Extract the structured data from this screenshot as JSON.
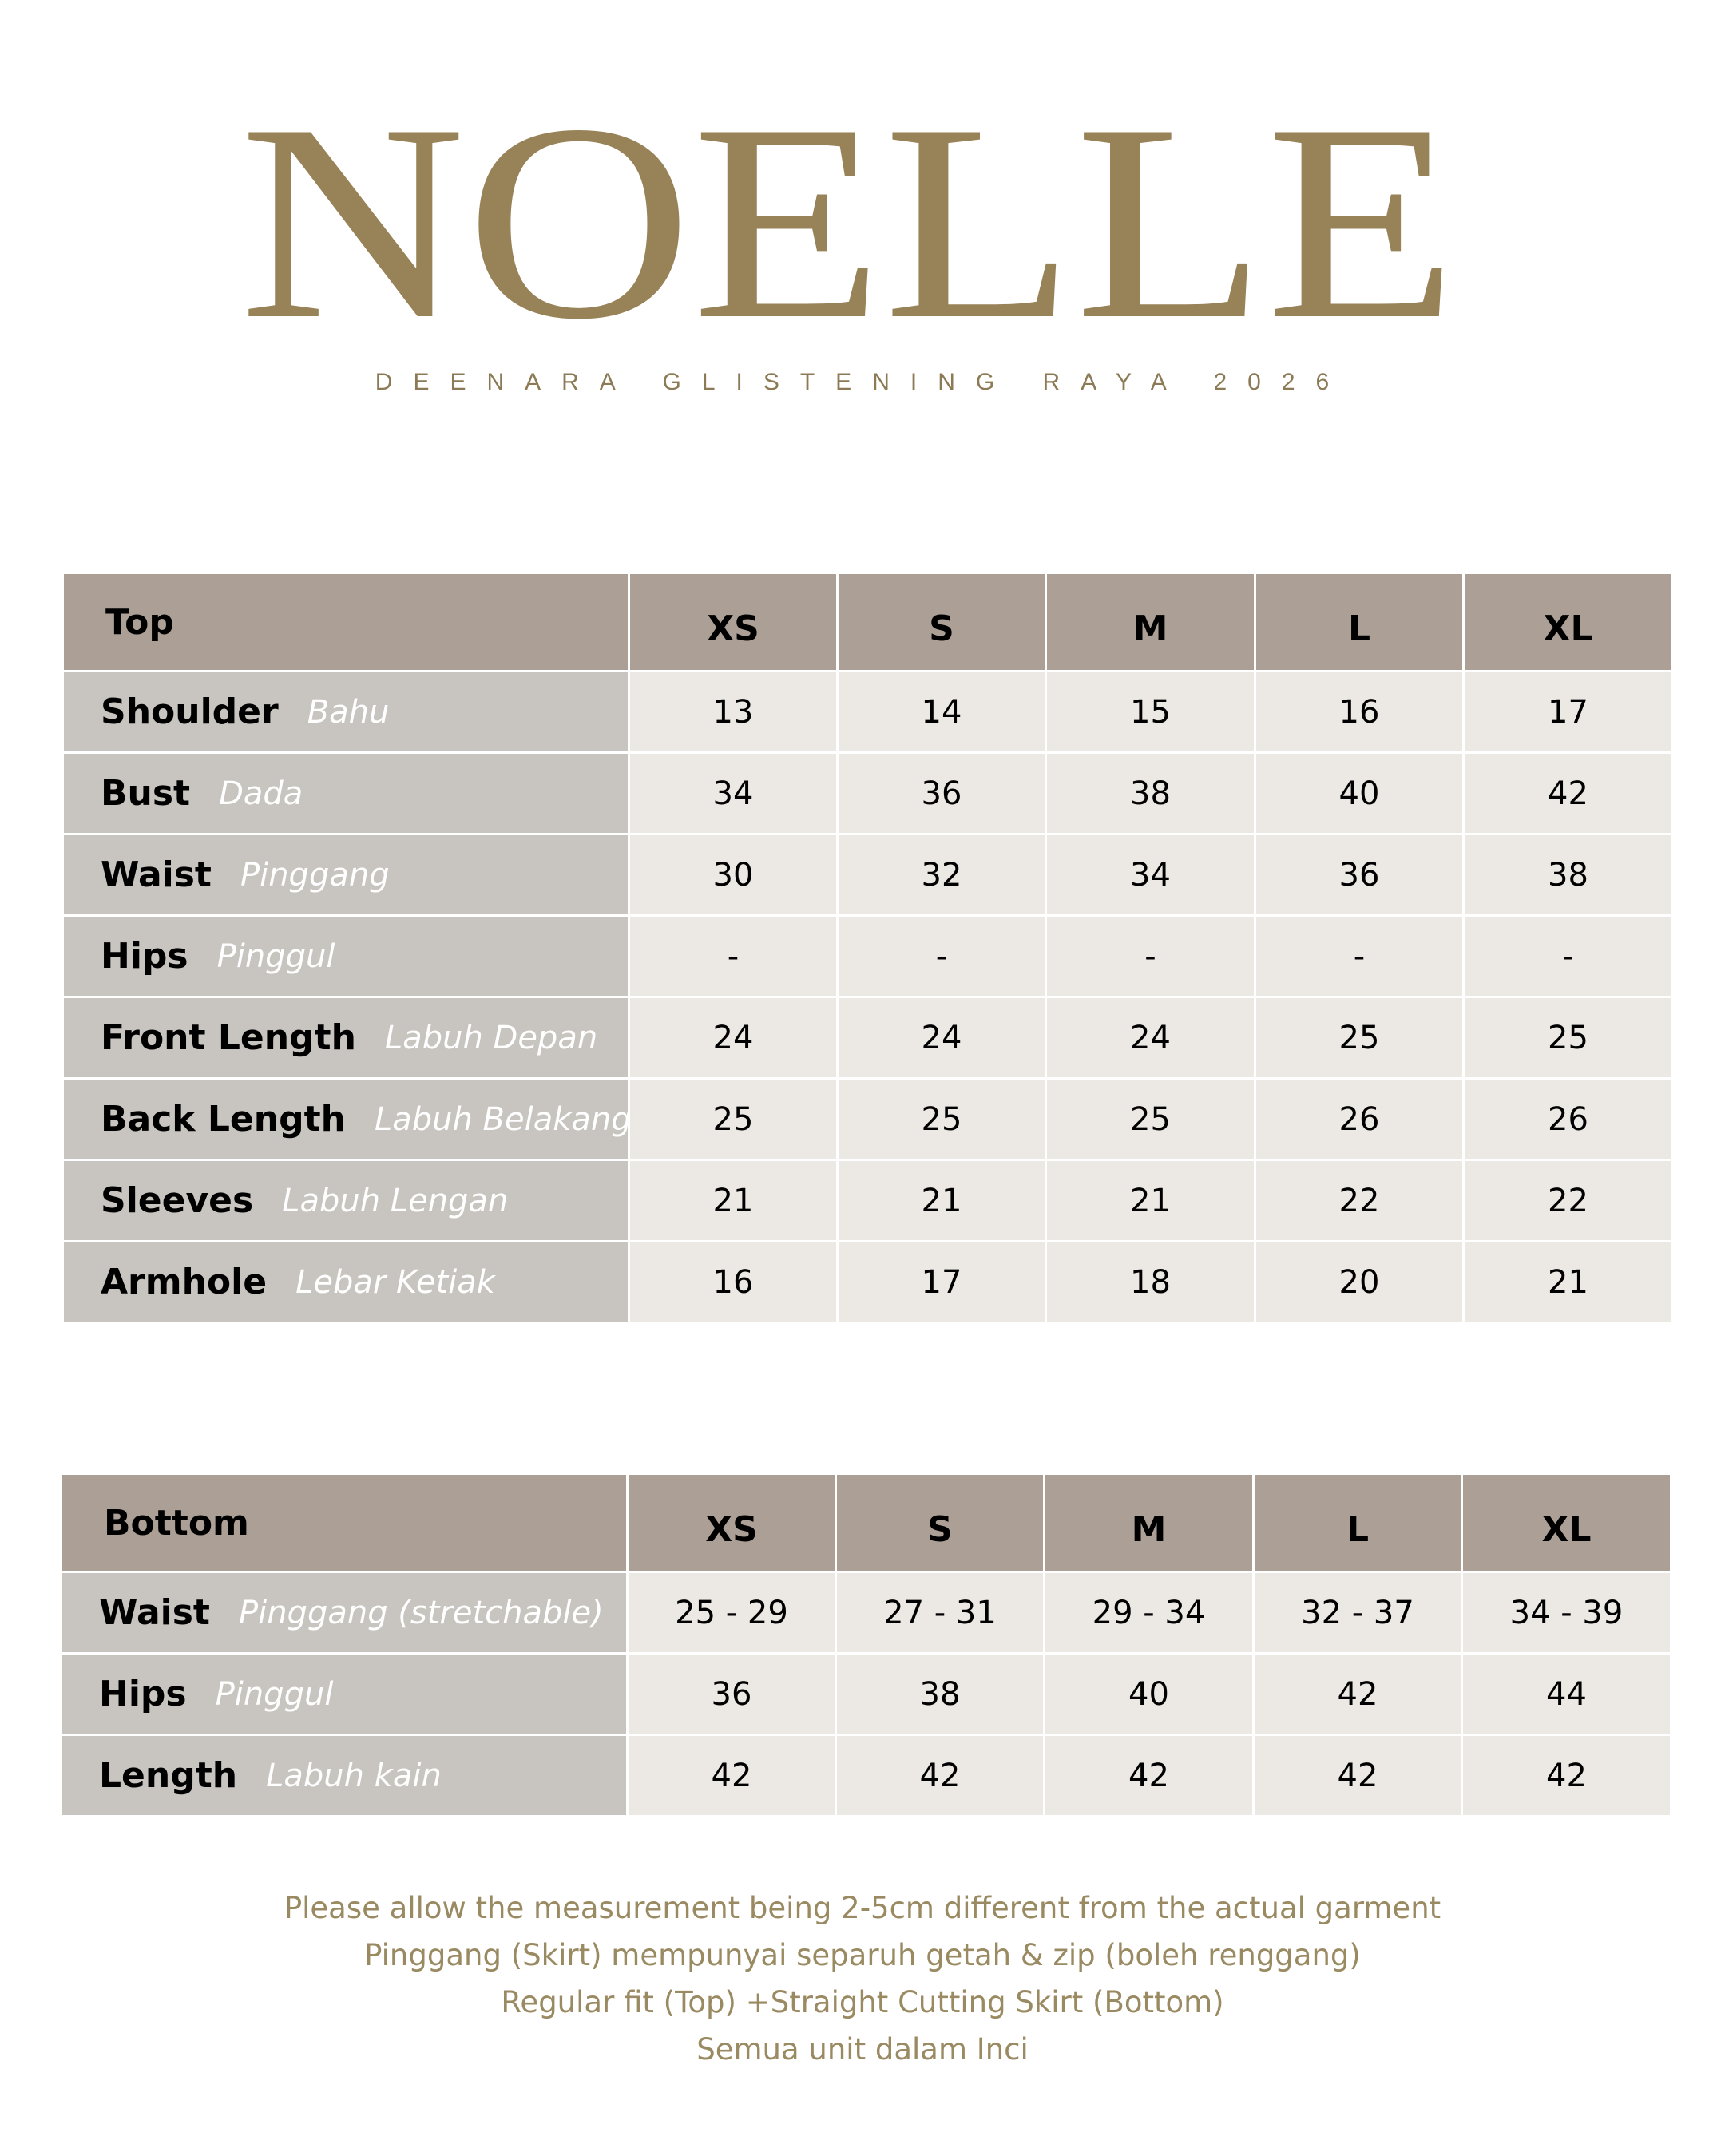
{
  "brand": {
    "logo_text": "NOELLE",
    "subtitle": "DEENARA GLISTENING RAYA 2026",
    "color": "#988257"
  },
  "colors": {
    "header_bg": "#ab9f96",
    "label_bg": "#c8c4bf",
    "value_bg": "#ece8e3",
    "note_text": "#9a8a62"
  },
  "top_table": {
    "title": "Top",
    "sizes": [
      "XS",
      "S",
      "M",
      "L",
      "XL"
    ],
    "rows": [
      {
        "label": "Shoulder",
        "label_malay": "Bahu",
        "values": [
          "13",
          "14",
          "15",
          "16",
          "17"
        ]
      },
      {
        "label": "Bust",
        "label_malay": "Dada",
        "values": [
          "34",
          "36",
          "38",
          "40",
          "42"
        ]
      },
      {
        "label": "Waist",
        "label_malay": "Pinggang",
        "values": [
          "30",
          "32",
          "34",
          "36",
          "38"
        ]
      },
      {
        "label": "Hips",
        "label_malay": "Pinggul",
        "values": [
          "-",
          "-",
          "-",
          "-",
          "-"
        ]
      },
      {
        "label": "Front Length",
        "label_malay": "Labuh Depan",
        "values": [
          "24",
          "24",
          "24",
          "25",
          "25"
        ]
      },
      {
        "label": "Back Length",
        "label_malay": "Labuh Belakang",
        "values": [
          "25",
          "25",
          "25",
          "26",
          "26"
        ]
      },
      {
        "label": "Sleeves",
        "label_malay": "Labuh Lengan",
        "values": [
          "21",
          "21",
          "21",
          "22",
          "22"
        ]
      },
      {
        "label": "Armhole",
        "label_malay": "Lebar Ketiak",
        "values": [
          "16",
          "17",
          "18",
          "20",
          "21"
        ]
      }
    ]
  },
  "bottom_table": {
    "title": "Bottom",
    "sizes": [
      "XS",
      "S",
      "M",
      "L",
      "XL"
    ],
    "rows": [
      {
        "label": "Waist",
        "label_malay": "Pinggang (stretchable)",
        "values": [
          "25 - 29",
          "27 - 31",
          "29 - 34",
          "32 - 37",
          "34 - 39"
        ]
      },
      {
        "label": "Hips",
        "label_malay": "Pinggul",
        "values": [
          "36",
          "38",
          "40",
          "42",
          "44"
        ]
      },
      {
        "label": "Length",
        "label_malay": "Labuh kain",
        "values": [
          "42",
          "42",
          "42",
          "42",
          "42"
        ]
      }
    ]
  },
  "notes": [
    "Please allow the measurement being 2-5cm different from the actual garment",
    "Pinggang (Skirt) mempunyai separuh getah & zip (boleh renggang)",
    "Regular fit (Top) +Straight Cutting Skirt (Bottom)",
    "Semua unit dalam Inci"
  ]
}
